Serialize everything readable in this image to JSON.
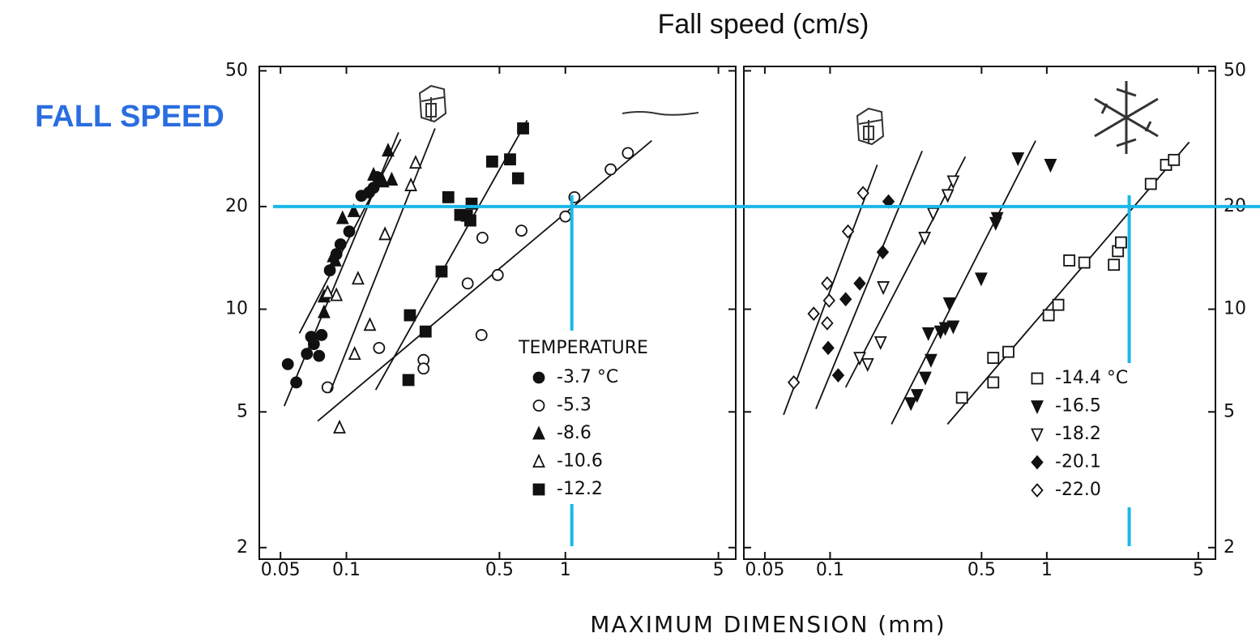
{
  "header": {
    "title": "Fall speed (cm/s)",
    "annotation": "FALL SPEED",
    "x_label": "MAXIMUM DIMENSION (mm)"
  },
  "reference_lines": {
    "y": 20,
    "x": [
      1.07,
      2.4
    ],
    "color": "#1ab8e8"
  },
  "chart_data": [
    {
      "type": "scatter",
      "log_x": true,
      "log_y": true,
      "xlim": [
        0.04,
        6
      ],
      "ylim": [
        1.85,
        51.5
      ],
      "xticks": [
        0.05,
        0.1,
        0.5,
        1,
        5
      ],
      "yticks": [
        2,
        5,
        10,
        20,
        50
      ],
      "legend_title": "TEMPERATURE",
      "legend": "lower right",
      "series": [
        {
          "name": "-3.7 °C",
          "marker": "circle",
          "filled": true,
          "color": "#111111",
          "x": [
            0.054,
            0.059,
            0.066,
            0.069,
            0.071,
            0.075,
            0.077,
            0.084,
            0.09,
            0.094,
            0.103,
            0.117,
            0.127,
            0.133,
            0.138
          ],
          "y": [
            6.9,
            6.1,
            7.4,
            8.3,
            7.9,
            7.3,
            8.4,
            13.0,
            14.5,
            15.5,
            16.9,
            21.5,
            22.0,
            22.7,
            24.4
          ],
          "fit": {
            "x": [
              0.052,
              0.173
            ],
            "y": [
              5.2,
              33.0
            ]
          }
        },
        {
          "name": "-5.3",
          "marker": "circle",
          "filled": false,
          "color": "#111111",
          "x": [
            0.082,
            0.141,
            0.225,
            0.225,
            0.358,
            0.414,
            0.418,
            0.491,
            0.63,
            1.0,
            1.1,
            1.61,
            1.93
          ],
          "y": [
            5.9,
            7.7,
            7.1,
            6.7,
            11.9,
            8.4,
            16.2,
            12.6,
            17.0,
            18.7,
            21.3,
            25.7,
            28.7
          ],
          "fit": {
            "x": [
              0.074,
              2.48
            ],
            "y": [
              4.7,
              31.2
            ]
          }
        },
        {
          "name": "-8.6",
          "marker": "triangle",
          "filled": true,
          "color": "#111111",
          "x": [
            0.079,
            0.079,
            0.087,
            0.089,
            0.096,
            0.108,
            0.133,
            0.147,
            0.155,
            0.161
          ],
          "y": [
            9.8,
            10.9,
            14.3,
            13.9,
            18.5,
            19.4,
            24.8,
            23.7,
            29.2,
            24.0
          ],
          "fit": {
            "x": [
              0.061,
              0.177
            ],
            "y": [
              8.5,
              31.5
            ]
          }
        },
        {
          "name": "-10.6",
          "marker": "triangle",
          "filled": false,
          "color": "#111111",
          "x": [
            0.082,
            0.09,
            0.109,
            0.113,
            0.128,
            0.15,
            0.197,
            0.207,
            0.093
          ],
          "y": [
            11.2,
            11.0,
            7.4,
            12.3,
            9.0,
            16.6,
            23.1,
            26.9,
            4.5
          ],
          "fit": {
            "x": [
              0.084,
              0.254
            ],
            "y": [
              5.7,
              33.9
            ]
          }
        },
        {
          "name": "-12.2",
          "marker": "square",
          "filled": true,
          "color": "#111111",
          "x": [
            0.192,
            0.195,
            0.23,
            0.272,
            0.292,
            0.331,
            0.355,
            0.373,
            0.368,
            0.463,
            0.559,
            0.608,
            0.641
          ],
          "y": [
            6.2,
            9.6,
            8.6,
            12.9,
            21.3,
            18.9,
            18.8,
            20.4,
            18.2,
            27.1,
            27.5,
            24.2,
            33.9
          ],
          "fit": {
            "x": [
              0.136,
              0.669
            ],
            "y": [
              5.8,
              35.8
            ]
          }
        }
      ]
    },
    {
      "type": "scatter",
      "log_x": true,
      "log_y": true,
      "xlim": [
        0.04,
        6
      ],
      "ylim": [
        1.85,
        51.5
      ],
      "xticks": [
        0.05,
        0.1,
        0.5,
        1,
        5
      ],
      "yticks": [
        2,
        5,
        10,
        20,
        50
      ],
      "legend": "lower right",
      "series": [
        {
          "name": "-14.4 °C",
          "marker": "square",
          "filled": false,
          "color": "#111111",
          "x": [
            0.406,
            0.566,
            0.566,
            0.665,
            1.02,
            1.13,
            1.27,
            1.49,
            2.04,
            2.13,
            2.2,
            3.02,
            3.55,
            3.86
          ],
          "y": [
            5.5,
            6.1,
            7.2,
            7.5,
            9.6,
            10.3,
            13.9,
            13.7,
            13.5,
            14.8,
            15.7,
            23.3,
            26.5,
            27.4
          ],
          "fit": {
            "x": [
              0.348,
              4.54
            ],
            "y": [
              4.6,
              30.9
            ]
          }
        },
        {
          "name": "-16.5",
          "marker": "triangle-down",
          "filled": true,
          "color": "#111111",
          "x": [
            0.236,
            0.252,
            0.275,
            0.292,
            0.284,
            0.323,
            0.34,
            0.355,
            0.37,
            0.498,
            0.581,
            0.59,
            0.736,
            1.04
          ],
          "y": [
            5.3,
            5.6,
            6.3,
            7.1,
            8.5,
            8.6,
            8.8,
            10.4,
            8.9,
            12.3,
            17.9,
            18.5,
            27.7,
            26.5
          ],
          "fit": {
            "x": [
              0.192,
              0.888
            ],
            "y": [
              4.6,
              31.2
            ]
          }
        },
        {
          "name": "-18.2",
          "marker": "triangle-down",
          "filled": false,
          "color": "#111111",
          "x": [
            0.137,
            0.149,
            0.171,
            0.176,
            0.273,
            0.299,
            0.349,
            0.37
          ],
          "y": [
            7.2,
            6.9,
            8.0,
            11.6,
            16.2,
            19.1,
            21.6,
            23.7
          ],
          "fit": {
            "x": [
              0.118,
              0.421
            ],
            "y": [
              5.9,
              28.0
            ]
          }
        },
        {
          "name": "-20.1",
          "marker": "diamond",
          "filled": true,
          "color": "#111111",
          "x": [
            0.098,
            0.109,
            0.118,
            0.137,
            0.175,
            0.186
          ],
          "y": [
            7.7,
            6.4,
            10.7,
            11.9,
            14.7,
            20.7
          ],
          "fit": {
            "x": [
              0.086,
              0.266
            ],
            "y": [
              5.1,
              29.1
            ]
          }
        },
        {
          "name": "-22.0",
          "marker": "diamond",
          "filled": false,
          "color": "#111111",
          "x": [
            0.068,
            0.084,
            0.097,
            0.099,
            0.097,
            0.121,
            0.142
          ],
          "y": [
            6.1,
            9.7,
            9.1,
            10.6,
            11.9,
            16.9,
            21.9
          ],
          "fit": {
            "x": [
              0.061,
              0.165
            ],
            "y": [
              4.9,
              26.5
            ]
          }
        }
      ]
    }
  ]
}
